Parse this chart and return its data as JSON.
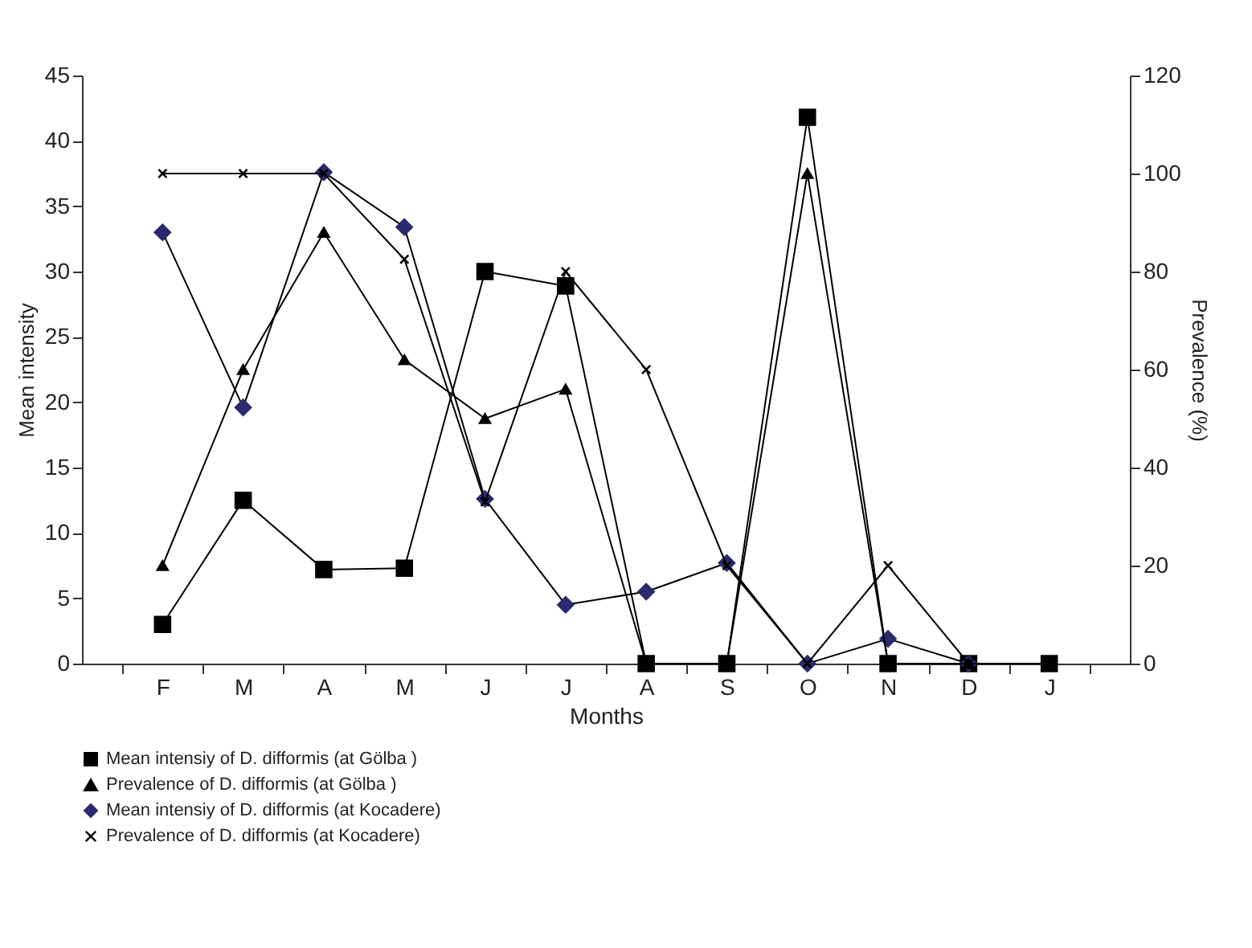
{
  "chart_data": {
    "type": "line",
    "xlabel": "Months",
    "ylabel": "Mean intensity",
    "y2label": "Prevalence (%)",
    "categories": [
      "F",
      "M",
      "A",
      "M",
      "J",
      "J",
      "A",
      "S",
      "O",
      "N",
      "D",
      "J"
    ],
    "series": [
      {
        "name": "Mean intensiy of D. difformis (at Gölba  )",
        "color": "#000000",
        "marker": "square",
        "values": [
          3,
          12.5,
          7.2,
          7.3,
          30,
          28.9,
          0,
          0,
          41.8,
          0,
          0,
          0
        ]
      },
      {
        "name": "Prevalence of D. difformis (at Gölba  )",
        "color": "#000000",
        "marker": "triangle",
        "axis": "y2",
        "values": [
          20,
          60,
          88,
          62,
          50,
          56,
          0,
          0,
          100,
          0,
          0,
          0
        ]
      },
      {
        "name": "Mean intensiy of D. difformis (at Kocadere)",
        "color": "#2a2a6e",
        "marker": "diamond",
        "values": [
          33,
          19.6,
          37.6,
          33.4,
          12.6,
          4.5,
          5.5,
          7.7,
          0,
          1.9,
          0,
          null
        ]
      },
      {
        "name": "Prevalence of D. difformis (at Kocadere)",
        "color": "#000000",
        "marker": "cross",
        "axis": "y2",
        "values": [
          100,
          100,
          100,
          82.5,
          33,
          80,
          60,
          20,
          0,
          20,
          0,
          null
        ]
      }
    ],
    "ylim": [
      0,
      45
    ],
    "yticks": [
      0,
      5,
      10,
      15,
      20,
      25,
      30,
      35,
      40,
      45
    ],
    "y2lim": [
      0,
      120
    ],
    "y2ticks": [
      0,
      20,
      40,
      60,
      80,
      100,
      120
    ],
    "legend": "bottom",
    "grid": false
  }
}
